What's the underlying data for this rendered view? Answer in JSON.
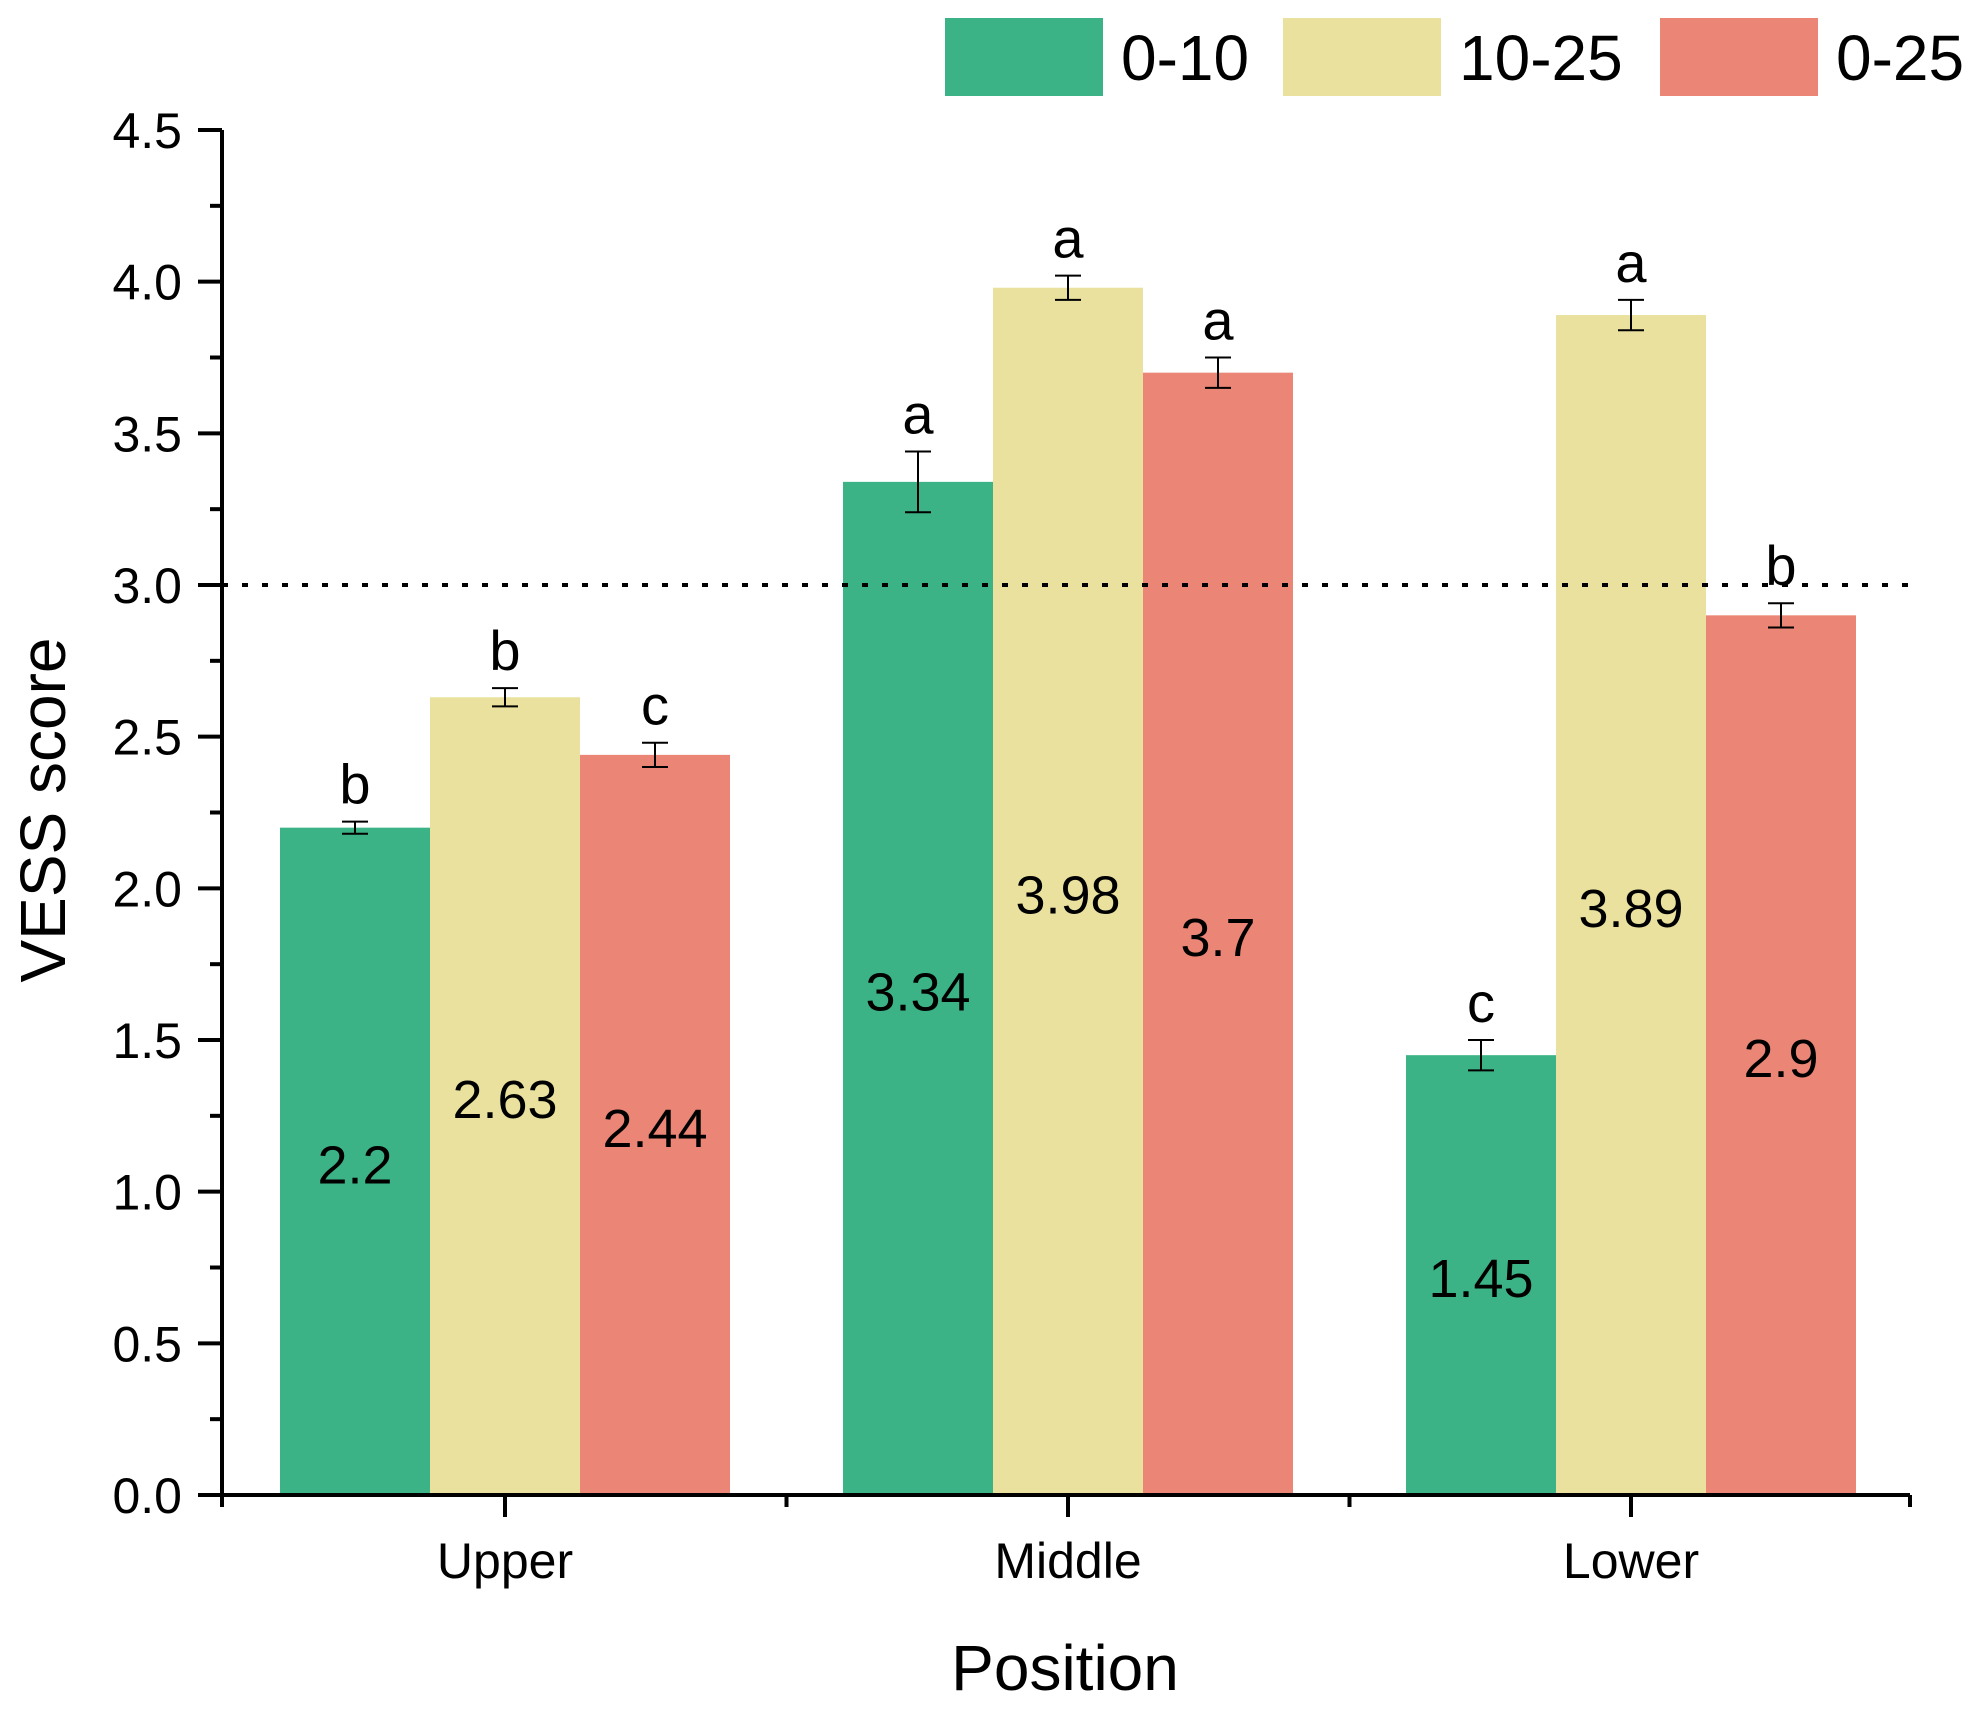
{
  "chart_data": {
    "type": "bar",
    "xlabel": "Position",
    "ylabel": "VESS score",
    "categories": [
      "Upper",
      "Middle",
      "Lower"
    ],
    "ylim": [
      0,
      4.5
    ],
    "yticks": [
      "0.0",
      "0.5",
      "1.0",
      "1.5",
      "2.0",
      "2.5",
      "3.0",
      "3.5",
      "4.0",
      "4.5"
    ],
    "reference_line": {
      "y": 3.0,
      "style": "dotted"
    },
    "grid": false,
    "legend_position": "top-right",
    "series": [
      {
        "name": "0-10",
        "color": "#3cb386",
        "values": [
          2.2,
          3.34,
          1.45
        ],
        "value_labels": [
          "2.2",
          "3.34",
          "1.45"
        ],
        "errors": [
          0.02,
          0.1,
          0.05
        ],
        "letters": [
          "b",
          "a",
          "c"
        ]
      },
      {
        "name": "10-25",
        "color": "#e9e19d",
        "values": [
          2.63,
          3.98,
          3.89
        ],
        "value_labels": [
          "2.63",
          "3.98",
          "3.89"
        ],
        "errors": [
          0.03,
          0.04,
          0.05
        ],
        "letters": [
          "b",
          "a",
          "a"
        ]
      },
      {
        "name": "0-25",
        "color": "#eb8575",
        "values": [
          2.44,
          3.7,
          2.9
        ],
        "value_labels": [
          "2.44",
          "3.7",
          "2.9"
        ],
        "errors": [
          0.04,
          0.05,
          0.04
        ],
        "letters": [
          "c",
          "a",
          "b"
        ]
      }
    ]
  }
}
